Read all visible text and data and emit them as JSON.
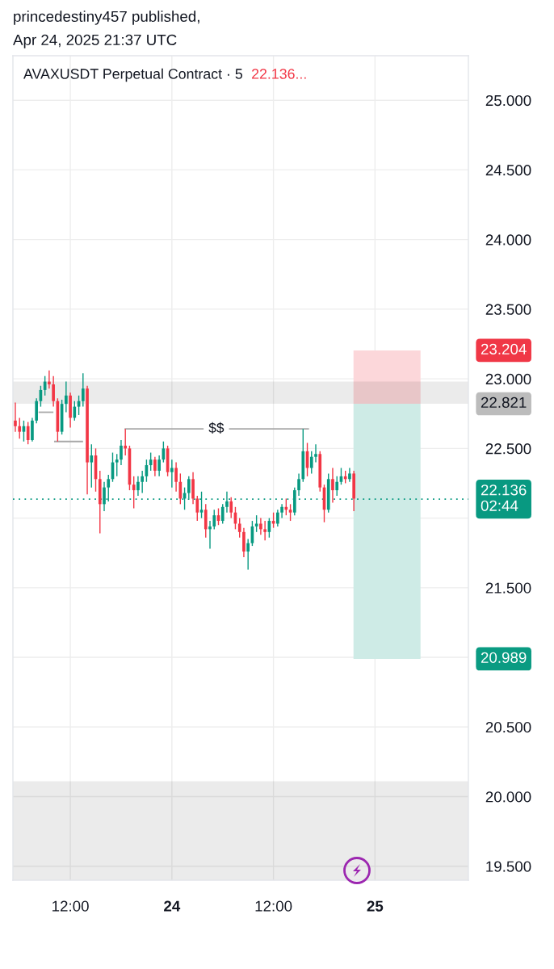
{
  "chart_data": {
    "type": "candlestick",
    "title": "AVAXUSDT Perpetual Contract · 5",
    "subtitle": "22.136...",
    "annotations": [
      "princedestiny457 published,",
      "Apr 24, 2025 21:37 UTC",
      {
        "text": "$$",
        "x": "2025-04-24T05:15",
        "y": 22.64
      },
      "23.204",
      "20.989"
    ],
    "x": [
      "2025-04-23T05:30",
      "2025-04-23T06:00",
      "2025-04-23T06:30",
      "2025-04-23T07:00",
      "2025-04-23T07:30",
      "2025-04-23T08:00",
      "2025-04-23T08:30",
      "2025-04-23T09:00",
      "2025-04-23T09:30",
      "2025-04-23T10:00",
      "2025-04-23T10:30",
      "2025-04-23T11:00",
      "2025-04-23T11:30",
      "2025-04-23T12:00",
      "2025-04-23T12:30",
      "2025-04-23T13:00",
      "2025-04-23T13:30",
      "2025-04-23T14:00",
      "2025-04-23T14:30",
      "2025-04-23T15:00",
      "2025-04-23T15:30",
      "2025-04-23T16:00",
      "2025-04-23T16:30",
      "2025-04-23T17:00",
      "2025-04-23T17:30",
      "2025-04-23T18:00",
      "2025-04-23T18:30",
      "2025-04-23T19:00",
      "2025-04-23T19:30",
      "2025-04-23T20:00",
      "2025-04-23T20:30",
      "2025-04-23T21:00",
      "2025-04-23T21:30",
      "2025-04-23T22:00",
      "2025-04-23T22:30",
      "2025-04-23T23:00",
      "2025-04-23T23:30",
      "2025-04-24T00:00",
      "2025-04-24T00:30",
      "2025-04-24T01:00",
      "2025-04-24T01:30",
      "2025-04-24T02:00",
      "2025-04-24T02:30",
      "2025-04-24T03:00",
      "2025-04-24T03:30",
      "2025-04-24T04:00",
      "2025-04-24T04:30",
      "2025-04-24T05:00",
      "2025-04-24T05:30",
      "2025-04-24T06:00",
      "2025-04-24T06:30",
      "2025-04-24T07:00",
      "2025-04-24T07:30",
      "2025-04-24T08:00",
      "2025-04-24T08:30",
      "2025-04-24T09:00",
      "2025-04-24T09:30",
      "2025-04-24T10:00",
      "2025-04-24T10:30",
      "2025-04-24T11:00",
      "2025-04-24T11:30",
      "2025-04-24T12:00",
      "2025-04-24T12:30",
      "2025-04-24T13:00",
      "2025-04-24T13:30",
      "2025-04-24T14:00",
      "2025-04-24T14:30",
      "2025-04-24T15:00",
      "2025-04-24T15:30",
      "2025-04-24T16:00",
      "2025-04-24T16:30",
      "2025-04-24T17:00",
      "2025-04-24T17:30",
      "2025-04-24T18:00",
      "2025-04-24T18:30",
      "2025-04-24T19:00",
      "2025-04-24T19:30",
      "2025-04-24T20:00",
      "2025-04-24T20:30",
      "2025-04-24T21:00",
      "2025-04-24T21:30"
    ],
    "ohlc": [
      [
        22.7,
        22.83,
        22.62,
        22.66
      ],
      [
        22.66,
        22.72,
        22.57,
        22.62
      ],
      [
        22.62,
        22.7,
        22.55,
        22.66
      ],
      [
        22.66,
        22.69,
        22.53,
        22.56
      ],
      [
        22.56,
        22.72,
        22.55,
        22.7
      ],
      [
        22.7,
        22.86,
        22.68,
        22.84
      ],
      [
        22.84,
        22.95,
        22.8,
        22.92
      ],
      [
        22.92,
        23.02,
        22.88,
        22.98
      ],
      [
        22.98,
        23.06,
        22.93,
        22.96
      ],
      [
        22.96,
        23.02,
        22.8,
        22.84
      ],
      [
        22.84,
        22.86,
        22.55,
        22.62
      ],
      [
        22.62,
        22.85,
        22.6,
        22.82
      ],
      [
        22.82,
        22.98,
        22.76,
        22.88
      ],
      [
        22.88,
        22.9,
        22.65,
        22.72
      ],
      [
        22.72,
        22.84,
        22.7,
        22.8
      ],
      [
        22.8,
        22.88,
        22.74,
        22.84
      ],
      [
        22.84,
        23.04,
        22.8,
        22.93
      ],
      [
        22.93,
        22.95,
        22.17,
        22.4
      ],
      [
        22.4,
        22.53,
        22.22,
        22.45
      ],
      [
        22.45,
        22.5,
        22.19,
        22.28
      ],
      [
        22.28,
        22.34,
        21.89,
        22.1
      ],
      [
        22.1,
        22.26,
        22.05,
        22.22
      ],
      [
        22.22,
        22.31,
        22.12,
        22.28
      ],
      [
        22.28,
        22.47,
        22.26,
        22.4
      ],
      [
        22.4,
        22.46,
        22.3,
        22.42
      ],
      [
        22.42,
        22.56,
        22.38,
        22.52
      ],
      [
        22.52,
        22.64,
        22.45,
        22.5
      ],
      [
        22.5,
        22.52,
        22.2,
        22.24
      ],
      [
        22.24,
        22.3,
        22.07,
        22.2
      ],
      [
        22.2,
        22.3,
        22.16,
        22.26
      ],
      [
        22.26,
        22.34,
        22.18,
        22.3
      ],
      [
        22.3,
        22.42,
        22.26,
        22.38
      ],
      [
        22.38,
        22.47,
        22.34,
        22.42
      ],
      [
        22.42,
        22.44,
        22.3,
        22.34
      ],
      [
        22.34,
        22.45,
        22.3,
        22.42
      ],
      [
        22.42,
        22.55,
        22.4,
        22.5
      ],
      [
        22.5,
        22.52,
        22.3,
        22.33
      ],
      [
        22.33,
        22.42,
        22.22,
        22.36
      ],
      [
        22.36,
        22.4,
        22.19,
        22.26
      ],
      [
        22.26,
        22.32,
        22.1,
        22.14
      ],
      [
        22.14,
        22.22,
        22.06,
        22.18
      ],
      [
        22.18,
        22.3,
        22.14,
        22.28
      ],
      [
        22.28,
        22.33,
        22.1,
        22.14
      ],
      [
        22.14,
        22.16,
        21.98,
        22.04
      ],
      [
        22.04,
        22.19,
        22.0,
        22.06
      ],
      [
        22.06,
        22.1,
        21.86,
        21.92
      ],
      [
        21.92,
        21.98,
        21.78,
        21.94
      ],
      [
        21.94,
        22.06,
        21.92,
        22.02
      ],
      [
        22.02,
        22.07,
        21.95,
        21.98
      ],
      [
        21.98,
        22.1,
        21.96,
        22.08
      ],
      [
        22.08,
        22.19,
        22.04,
        22.12
      ],
      [
        22.12,
        22.15,
        22.0,
        22.04
      ],
      [
        22.04,
        22.08,
        21.92,
        21.96
      ],
      [
        21.96,
        22.0,
        21.86,
        21.9
      ],
      [
        21.9,
        21.93,
        21.72,
        21.76
      ],
      [
        21.76,
        21.85,
        21.63,
        21.82
      ],
      [
        21.82,
        21.98,
        21.8,
        21.94
      ],
      [
        21.94,
        22.02,
        21.9,
        21.96
      ],
      [
        21.96,
        22.0,
        21.88,
        21.92
      ],
      [
        21.92,
        21.98,
        21.84,
        21.9
      ],
      [
        21.9,
        22.0,
        21.86,
        21.98
      ],
      [
        21.98,
        22.04,
        21.93,
        21.96
      ],
      [
        21.96,
        22.06,
        21.94,
        22.04
      ],
      [
        22.04,
        22.1,
        22.0,
        22.08
      ],
      [
        22.08,
        22.14,
        22.02,
        22.06
      ],
      [
        22.06,
        22.1,
        21.98,
        22.04
      ],
      [
        22.04,
        22.22,
        22.02,
        22.2
      ],
      [
        22.2,
        22.32,
        22.16,
        22.28
      ],
      [
        22.28,
        22.64,
        22.26,
        22.48
      ],
      [
        22.48,
        22.54,
        22.3,
        22.36
      ],
      [
        22.36,
        22.48,
        22.32,
        22.44
      ],
      [
        22.44,
        22.53,
        22.4,
        22.46
      ],
      [
        22.46,
        22.48,
        22.19,
        22.22
      ],
      [
        22.22,
        22.24,
        21.97,
        22.06
      ],
      [
        22.06,
        22.32,
        22.04,
        22.28
      ],
      [
        22.28,
        22.36,
        22.11,
        22.2
      ],
      [
        22.2,
        22.3,
        22.16,
        22.26
      ],
      [
        22.26,
        22.36,
        22.24,
        22.3
      ],
      [
        22.3,
        22.34,
        22.25,
        22.28
      ],
      [
        22.28,
        22.36,
        22.26,
        22.32
      ],
      [
        22.32,
        22.34,
        22.05,
        22.14
      ]
    ],
    "colors": [
      "#f23645",
      "#f23645",
      "#089981",
      "#f23645",
      "#089981",
      "#089981",
      "#089981",
      "#089981",
      "#f23645",
      "#f23645",
      "#f23645",
      "#089981",
      "#089981",
      "#f23645",
      "#089981",
      "#089981",
      "#089981",
      "#f23645",
      "#089981",
      "#f23645",
      "#f23645",
      "#089981",
      "#089981",
      "#089981",
      "#089981",
      "#089981",
      "#f23645",
      "#f23645",
      "#f23645",
      "#089981",
      "#089981",
      "#089981",
      "#089981",
      "#f23645",
      "#089981",
      "#089981",
      "#f23645",
      "#089981",
      "#f23645",
      "#f23645",
      "#089981",
      "#089981",
      "#f23645",
      "#f23645",
      "#089981",
      "#f23645",
      "#089981",
      "#089981",
      "#f23645",
      "#089981",
      "#089981",
      "#f23645",
      "#f23645",
      "#f23645",
      "#f23645",
      "#089981",
      "#089981",
      "#089981",
      "#f23645",
      "#f23645",
      "#089981",
      "#f23645",
      "#089981",
      "#089981",
      "#f23645",
      "#f23645",
      "#089981",
      "#089981",
      "#089981",
      "#f23645",
      "#089981",
      "#089981",
      "#f23645",
      "#f23645",
      "#089981",
      "#f23645",
      "#089981",
      "#089981",
      "#f23645",
      "#089981",
      "#f23645"
    ],
    "series": [
      {
        "type": "line",
        "color": "#a8a8a8",
        "x": [
          "2025-04-23T18:30",
          "2025-04-24T16:07"
        ],
        "values": [
          22.64,
          22.64
        ]
      },
      {
        "type": "line",
        "color": "#a8a8a8",
        "x": [
          "2025-04-23T08:20",
          "2025-04-23T09:55"
        ],
        "values": [
          22.76,
          22.76
        ]
      },
      {
        "type": "line",
        "color": "#a8a8a8",
        "x": [
          "2025-04-23T10:10",
          "2025-04-23T13:25"
        ],
        "values": [
          22.55,
          22.55
        ]
      },
      {
        "type": "bar",
        "color": "#fcd7da",
        "x": [
          "2025-04-25T01:25"
        ],
        "base": [
          22.821
        ],
        "values": [
          0.383
        ]
      },
      {
        "type": "bar",
        "color": "#ceebe6",
        "x": [
          "2025-04-25T01:25"
        ],
        "base": [
          22.821
        ],
        "values": [
          -1.832
        ]
      }
    ],
    "bands": [
      {
        "axis": "y",
        "from": 22.821,
        "to": 22.98,
        "color": "#ebebeb",
        "label": "22.821"
      },
      {
        "axis": "y",
        "from": 19.4,
        "to": 20.11,
        "color": "#ebebeb"
      }
    ],
    "ref_lines": [
      {
        "axis": "y",
        "value": 22.136,
        "label": "22.136\n02:44",
        "color": "#089981",
        "line_style": "dotted"
      }
    ],
    "xlim": [
      "2025-04-23T05:13",
      "2025-04-25T11:02"
    ],
    "xticks": [
      {
        "value": "2025-04-23T12:00",
        "label": "12:00"
      },
      {
        "value": "2025-04-24T00:00",
        "label": "24"
      },
      {
        "value": "2025-04-24T12:00",
        "label": "12:00"
      },
      {
        "value": "2025-04-25T00:00",
        "label": "25"
      }
    ],
    "ylim": [
      19.4,
      25.32
    ],
    "yticks": [
      {
        "value": 19.5,
        "label": "19.500"
      },
      {
        "value": 20,
        "label": "20.000"
      },
      {
        "value": 20.5,
        "label": "20.500"
      },
      {
        "value": 21,
        "label": null
      },
      {
        "value": 21.5,
        "label": "21.500"
      },
      {
        "value": 22,
        "label": null
      },
      {
        "value": 22.5,
        "label": "22.500"
      },
      {
        "value": 23,
        "label": "23.000"
      },
      {
        "value": 23.5,
        "label": "23.500"
      },
      {
        "value": 24,
        "label": "24.000"
      },
      {
        "value": 24.5,
        "label": "24.500"
      },
      {
        "value": 25,
        "label": "25.000"
      }
    ],
    "grid": true
  }
}
